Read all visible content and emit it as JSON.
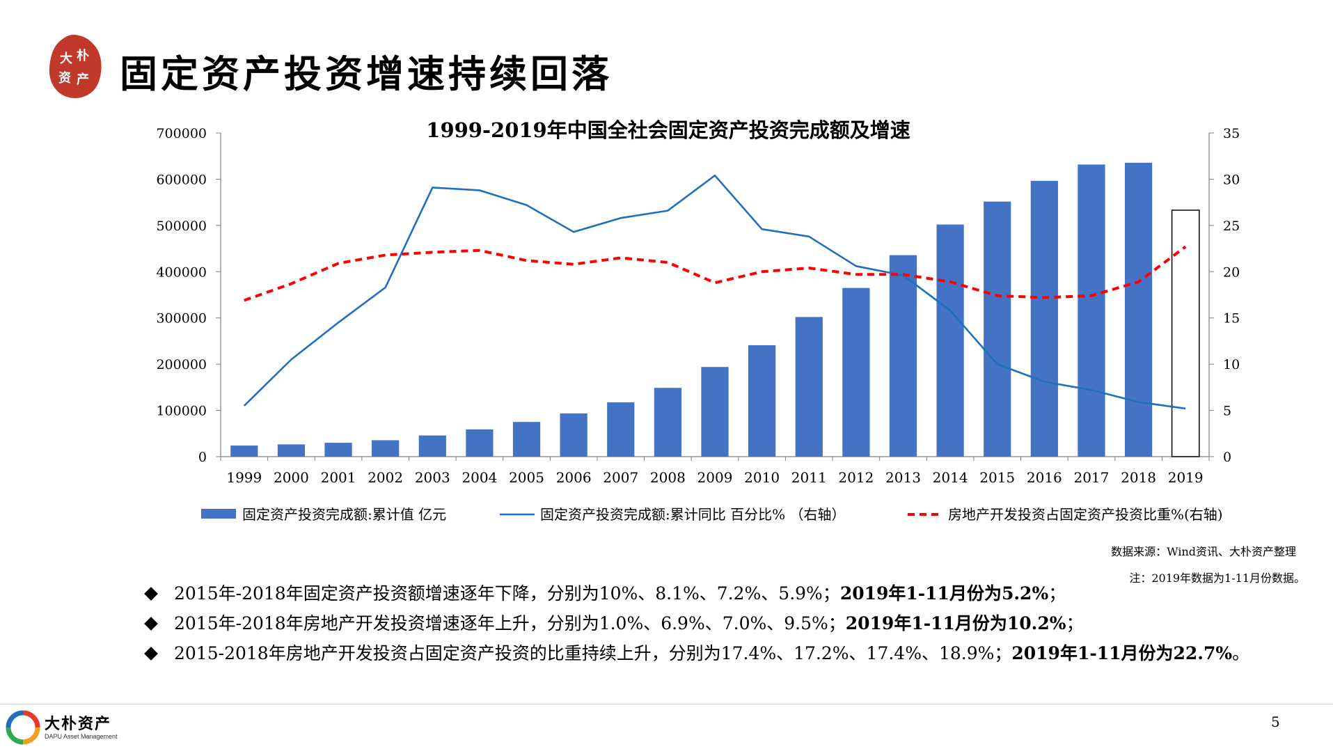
{
  "page": {
    "title": "固定资产投资增速持续回落",
    "seal_text": "大朴资产",
    "page_number": "5"
  },
  "chart_data": {
    "type": "bar",
    "title": "1999-2019年中国全社会固定资产投资完成额及增速",
    "categories": [
      "1999",
      "2000",
      "2001",
      "2002",
      "2003",
      "2004",
      "2005",
      "2006",
      "2007",
      "2008",
      "2009",
      "2010",
      "2011",
      "2012",
      "2013",
      "2014",
      "2015",
      "2016",
      "2017",
      "2018",
      "2019"
    ],
    "ylim": [
      0,
      700000
    ],
    "y_ticks": [
      "0",
      "100000",
      "200000",
      "300000",
      "400000",
      "500000",
      "600000",
      "700000"
    ],
    "y2lim": [
      0,
      35
    ],
    "y2_ticks": [
      "0",
      "5",
      "10",
      "15",
      "20",
      "25",
      "30",
      "35"
    ],
    "grid": false,
    "legend_position": "bottom",
    "series": [
      {
        "name": "固定资产投资完成额:累计值 亿元",
        "type": "bar",
        "axis": "left",
        "color": "#4472C4",
        "values": [
          24000,
          26500,
          30000,
          35500,
          45800,
          59000,
          75000,
          93500,
          117500,
          148700,
          193900,
          241000,
          302000,
          364800,
          435700,
          502000,
          551600,
          596500,
          631700,
          635600,
          533000
        ],
        "last_bar_style": "outline"
      },
      {
        "name": "固定资产投资完成额:累计同比 百分比% （右轴）",
        "type": "line",
        "axis": "right",
        "color": "#1F6FBF",
        "values": [
          5.5,
          10.5,
          14.5,
          18.3,
          29.1,
          28.8,
          27.2,
          24.3,
          25.8,
          26.6,
          30.4,
          24.6,
          23.8,
          20.6,
          19.6,
          15.8,
          10.0,
          8.1,
          7.2,
          5.9,
          5.2
        ]
      },
      {
        "name": "房地产开发投资占固定资产投资比重%(右轴)",
        "type": "line",
        "axis": "right",
        "color": "#FF0000",
        "dash": true,
        "values": [
          16.9,
          18.7,
          20.9,
          21.8,
          22.1,
          22.3,
          21.2,
          20.8,
          21.5,
          21.0,
          18.8,
          20.0,
          20.4,
          19.7,
          19.7,
          18.9,
          17.4,
          17.2,
          17.4,
          18.9,
          22.7
        ]
      }
    ],
    "source_note": "数据来源：Wind资讯、大朴资产整理",
    "data_note": "注：2019年数据为1-11月份数据。"
  },
  "bullets": [
    {
      "text": "2015年-2018年固定资产投资额增速逐年下降，分别为10%、8.1%、7.2%、5.9%；",
      "bold": "2019年1-11月份为5.2%",
      "tail": "；"
    },
    {
      "text": "2015年-2018年房地产开发投资增速逐年上升，分别为1.0%、6.9%、7.0%、9.5%；",
      "bold": "2019年1-11月份为10.2%",
      "tail": "；"
    },
    {
      "text": "2015-2018年房地产开发投资占固定资产投资的比重持续上升，分别为17.4%、17.2%、17.4%、18.9%；",
      "bold": "2019年1-11月份为22.7%",
      "tail": "。"
    }
  ],
  "footer": {
    "brand_cn": "大朴资产",
    "brand_en": "DAPU Asset Management"
  }
}
